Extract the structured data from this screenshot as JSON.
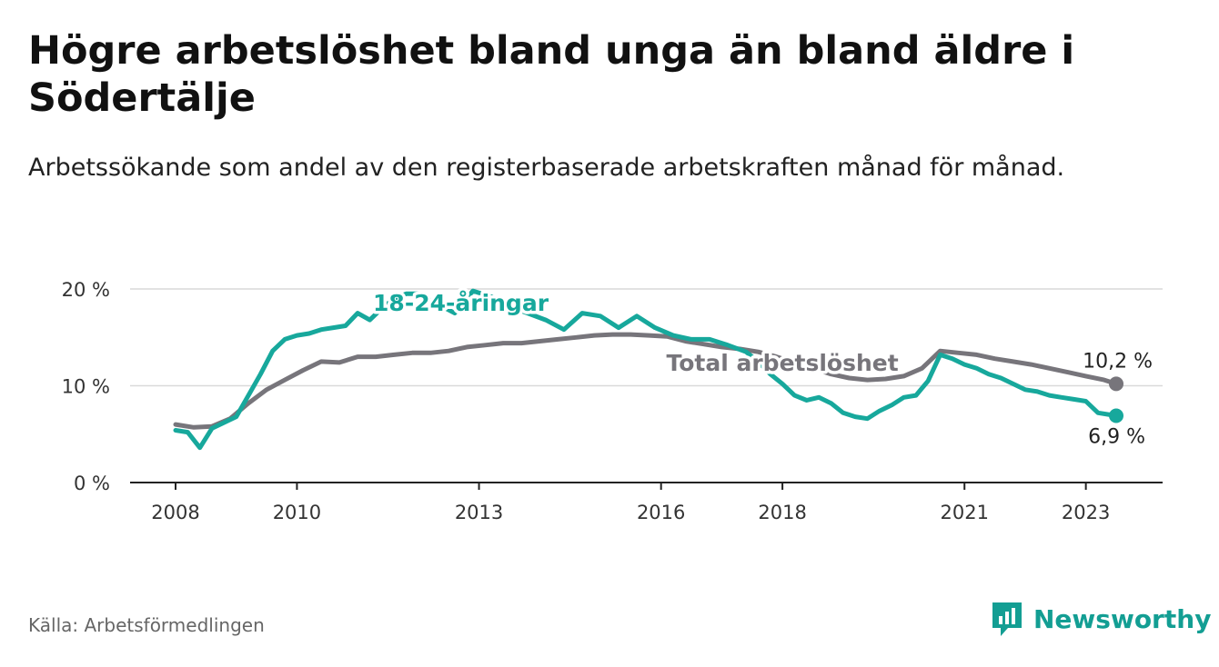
{
  "title": "Högre arbetslöshet bland unga än bland äldre i Södertälje",
  "subtitle": "Arbetssökande som andel av den registerbaserade arbetskraften månad för månad.",
  "source": "Källa: Arbetsförmedlingen",
  "brand": "Newsworthy",
  "colors": {
    "youth": "#17a89c",
    "total": "#77757b",
    "grid": "#d9d9d9",
    "brand": "#139e93"
  },
  "chart_data": {
    "type": "line",
    "title": "Högre arbetslöshet bland unga än bland äldre i Södertälje",
    "xlabel": "",
    "ylabel": "",
    "xlim": [
      2008,
      2024.7
    ],
    "ylim": [
      0,
      20
    ],
    "y_ticks": [
      0,
      10,
      20
    ],
    "y_tick_labels": [
      "0 %",
      "10 %",
      "20 %"
    ],
    "x_ticks": [
      2008,
      2010,
      2013,
      2016,
      2018,
      2021,
      2023
    ],
    "x_tick_labels": [
      "2008",
      "2010",
      "2013",
      "2016",
      "2018",
      "2021",
      "2023"
    ],
    "grid": true,
    "series": [
      {
        "name": "18-24-åringar",
        "label": "18-24-åringar",
        "end_label": "6,9 %",
        "x": [
          2008.0,
          2008.2,
          2008.4,
          2008.6,
          2008.8,
          2009.0,
          2009.2,
          2009.4,
          2009.6,
          2009.8,
          2010.0,
          2010.2,
          2010.4,
          2010.6,
          2010.8,
          2011.0,
          2011.2,
          2011.4,
          2011.6,
          2011.8,
          2012.0,
          2012.3,
          2012.6,
          2012.9,
          2013.2,
          2013.5,
          2013.8,
          2014.1,
          2014.4,
          2014.7,
          2015.0,
          2015.3,
          2015.6,
          2015.9,
          2016.2,
          2016.5,
          2016.8,
          2017.1,
          2017.4,
          2017.6,
          2017.8,
          2018.0,
          2018.2,
          2018.4,
          2018.6,
          2018.8,
          2019.0,
          2019.2,
          2019.4,
          2019.6,
          2019.8,
          2020.0,
          2020.2,
          2020.4,
          2020.6,
          2020.8,
          2021.0,
          2021.2,
          2021.4,
          2021.6,
          2021.8,
          2022.0,
          2022.2,
          2022.4,
          2022.6,
          2022.8,
          2023.0,
          2023.2,
          2023.5
        ],
        "y": [
          5.4,
          5.2,
          3.6,
          5.6,
          6.2,
          6.8,
          9.0,
          11.2,
          13.6,
          14.8,
          15.2,
          15.4,
          15.8,
          16.0,
          16.2,
          17.5,
          16.8,
          18.0,
          19.0,
          19.5,
          19.5,
          18.5,
          17.5,
          19.8,
          19.2,
          18.2,
          17.5,
          16.8,
          15.8,
          17.5,
          17.2,
          16.0,
          17.2,
          16.0,
          15.2,
          14.8,
          14.8,
          14.2,
          13.5,
          12.5,
          11.2,
          10.2,
          9.0,
          8.5,
          8.8,
          8.2,
          7.2,
          6.8,
          6.6,
          7.4,
          8.0,
          8.8,
          9.0,
          10.5,
          13.2,
          12.8,
          12.2,
          11.8,
          11.2,
          10.8,
          10.2,
          9.6,
          9.4,
          9.0,
          8.8,
          8.6,
          8.4,
          7.2,
          6.9
        ]
      },
      {
        "name": "Total arbetslöshet",
        "label": "Total arbetslöshet",
        "end_label": "10,2 %",
        "x": [
          2008.0,
          2008.3,
          2008.6,
          2008.9,
          2009.2,
          2009.5,
          2009.8,
          2010.1,
          2010.4,
          2010.7,
          2011.0,
          2011.3,
          2011.6,
          2011.9,
          2012.2,
          2012.5,
          2012.8,
          2013.1,
          2013.4,
          2013.7,
          2014.0,
          2014.3,
          2014.6,
          2014.9,
          2015.2,
          2015.5,
          2015.8,
          2016.1,
          2016.4,
          2016.7,
          2017.0,
          2017.3,
          2017.6,
          2017.9,
          2018.2,
          2018.5,
          2018.8,
          2019.1,
          2019.4,
          2019.7,
          2020.0,
          2020.3,
          2020.6,
          2020.9,
          2021.2,
          2021.5,
          2021.8,
          2022.1,
          2022.4,
          2022.7,
          2023.0,
          2023.3,
          2023.5
        ],
        "y": [
          6.0,
          5.7,
          5.8,
          6.6,
          8.2,
          9.6,
          10.6,
          11.6,
          12.5,
          12.4,
          13.0,
          13.0,
          13.2,
          13.4,
          13.4,
          13.6,
          14.0,
          14.2,
          14.4,
          14.4,
          14.6,
          14.8,
          15.0,
          15.2,
          15.3,
          15.3,
          15.2,
          15.1,
          14.6,
          14.3,
          14.0,
          13.8,
          13.5,
          13.0,
          12.4,
          11.8,
          11.2,
          10.8,
          10.6,
          10.7,
          11.0,
          11.8,
          13.6,
          13.4,
          13.2,
          12.8,
          12.5,
          12.2,
          11.8,
          11.4,
          11.0,
          10.6,
          10.2
        ]
      }
    ]
  }
}
